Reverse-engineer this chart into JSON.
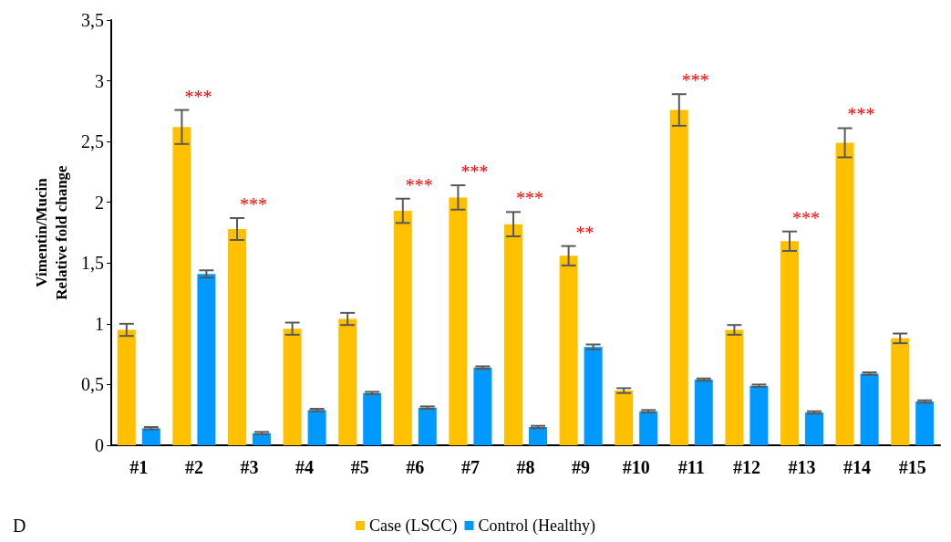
{
  "chart_data": {
    "type": "bar",
    "ylabel": "Vimentin/Mucin\nRelative fold change",
    "categories": [
      "#1",
      "#2",
      "#3",
      "#4",
      "#5",
      "#6",
      "#7",
      "#8",
      "#9",
      "#10",
      "#11",
      "#12",
      "#13",
      "#14",
      "#15"
    ],
    "series": [
      {
        "name": "Case (LSCC)",
        "color": "#ffc000",
        "values": [
          0.95,
          2.62,
          1.78,
          0.96,
          1.04,
          1.93,
          2.04,
          1.82,
          1.56,
          0.45,
          2.76,
          0.95,
          1.68,
          2.49,
          0.88
        ],
        "errors": [
          0.05,
          0.14,
          0.09,
          0.05,
          0.05,
          0.1,
          0.1,
          0.1,
          0.08,
          0.02,
          0.13,
          0.04,
          0.08,
          0.12,
          0.04
        ]
      },
      {
        "name": "Control (Healthy)",
        "color": "#0099ff",
        "values": [
          0.14,
          1.41,
          0.1,
          0.29,
          0.43,
          0.31,
          0.64,
          0.15,
          0.81,
          0.28,
          0.54,
          0.49,
          0.27,
          0.59,
          0.36
        ],
        "errors": [
          0.01,
          0.03,
          0.01,
          0.01,
          0.01,
          0.01,
          0.01,
          0.01,
          0.02,
          0.01,
          0.01,
          0.01,
          0.01,
          0.01,
          0.01
        ]
      }
    ],
    "ylim": [
      0,
      3.5
    ],
    "yticks": [
      0,
      {
        "value": 0.5,
        "label": "0,5"
      },
      1,
      {
        "value": 1.5,
        "label": "1,5"
      },
      2,
      {
        "value": 2.5,
        "label": "2,5"
      },
      3,
      {
        "value": 3.5,
        "label": "3,5"
      }
    ],
    "grid": false,
    "legend": "bottom",
    "annotations": [
      {
        "text": "***",
        "x": "#2",
        "y": 2.62
      },
      {
        "text": "***",
        "x": "#3",
        "y": 1.78
      },
      {
        "text": "***",
        "x": "#6",
        "y": 1.93
      },
      {
        "text": "***",
        "x": "#7",
        "y": 2.04
      },
      {
        "text": "***",
        "x": "#8",
        "y": 1.82
      },
      {
        "text": "**",
        "x": "#9",
        "y": 1.56
      },
      {
        "text": "***",
        "x": "#11",
        "y": 2.76
      },
      {
        "text": "***",
        "x": "#13",
        "y": 1.68
      },
      {
        "text": "***",
        "x": "#14",
        "y": 2.49
      },
      "D"
    ]
  }
}
